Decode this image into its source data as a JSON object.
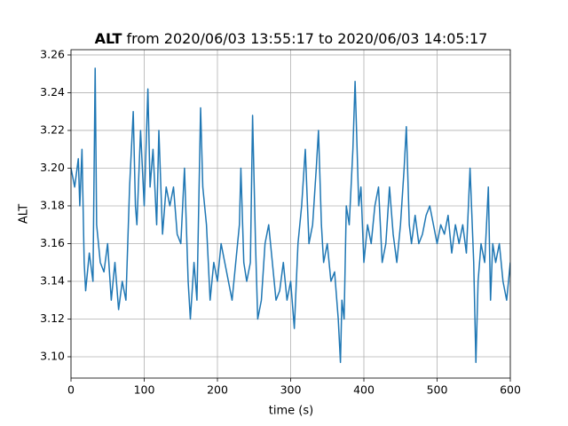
{
  "chart_data": {
    "type": "line",
    "title": [
      "ALT",
      "from 2020/06/03 13:55:17 to 2020/06/03 14:05:17"
    ],
    "x_label": "time (s)",
    "y_label": "ALT",
    "xlim": [
      0,
      600
    ],
    "xticks": [
      0,
      100,
      200,
      300,
      400,
      500,
      600
    ],
    "ylim": [
      3.0887,
      3.2628
    ],
    "yticks": [
      {
        "value": 3.1,
        "label": "3.10"
      },
      {
        "value": 3.12,
        "label": "3.12"
      },
      {
        "value": 3.14,
        "label": "3.14"
      },
      {
        "value": 3.16,
        "label": "3.16"
      },
      {
        "value": 3.18,
        "label": "3.18"
      },
      {
        "value": 3.2,
        "label": "3.20"
      },
      {
        "value": 3.22,
        "label": "3.22"
      },
      {
        "value": 3.24,
        "label": "3.24"
      },
      {
        "value": 3.26,
        "label": "3.26"
      }
    ],
    "grid": true,
    "x": [
      0,
      5,
      10,
      12,
      15,
      18,
      20,
      25,
      30,
      33,
      35,
      40,
      45,
      50,
      55,
      60,
      65,
      70,
      75,
      80,
      85,
      88,
      90,
      95,
      100,
      105,
      108,
      112,
      117,
      120,
      125,
      130,
      135,
      140,
      145,
      150,
      155,
      160,
      163,
      168,
      172,
      177,
      180,
      185,
      190,
      195,
      200,
      205,
      210,
      215,
      220,
      225,
      230,
      232,
      236,
      240,
      245,
      248,
      252,
      255,
      260,
      265,
      270,
      275,
      280,
      285,
      290,
      295,
      300,
      305,
      310,
      315,
      320,
      325,
      330,
      335,
      338,
      342,
      345,
      350,
      355,
      360,
      365,
      368,
      370,
      373,
      376,
      380,
      385,
      388,
      390,
      393,
      396,
      400,
      405,
      410,
      415,
      420,
      425,
      430,
      435,
      440,
      445,
      450,
      455,
      458,
      462,
      465,
      470,
      475,
      480,
      485,
      490,
      495,
      500,
      505,
      510,
      515,
      520,
      525,
      530,
      535,
      540,
      545,
      550,
      553,
      556,
      560,
      565,
      570,
      573,
      576,
      580,
      585,
      590,
      595,
      600
    ],
    "series": [
      {
        "name": "ALT",
        "color": "#1f77b4",
        "values": [
          3.2,
          3.19,
          3.205,
          3.18,
          3.21,
          3.15,
          3.135,
          3.155,
          3.14,
          3.253,
          3.17,
          3.15,
          3.145,
          3.16,
          3.13,
          3.15,
          3.125,
          3.14,
          3.13,
          3.19,
          3.23,
          3.18,
          3.17,
          3.22,
          3.18,
          3.242,
          3.19,
          3.21,
          3.17,
          3.22,
          3.165,
          3.19,
          3.18,
          3.19,
          3.165,
          3.16,
          3.2,
          3.14,
          3.12,
          3.15,
          3.13,
          3.232,
          3.19,
          3.17,
          3.13,
          3.15,
          3.14,
          3.16,
          3.15,
          3.14,
          3.13,
          3.15,
          3.17,
          3.2,
          3.15,
          3.14,
          3.15,
          3.228,
          3.16,
          3.12,
          3.13,
          3.16,
          3.17,
          3.15,
          3.13,
          3.135,
          3.15,
          3.13,
          3.14,
          3.115,
          3.16,
          3.18,
          3.21,
          3.16,
          3.17,
          3.2,
          3.22,
          3.17,
          3.15,
          3.16,
          3.14,
          3.145,
          3.12,
          3.097,
          3.13,
          3.12,
          3.18,
          3.17,
          3.21,
          3.246,
          3.22,
          3.18,
          3.19,
          3.15,
          3.17,
          3.16,
          3.18,
          3.19,
          3.15,
          3.16,
          3.19,
          3.165,
          3.15,
          3.17,
          3.2,
          3.222,
          3.17,
          3.16,
          3.175,
          3.16,
          3.165,
          3.175,
          3.18,
          3.17,
          3.16,
          3.17,
          3.165,
          3.175,
          3.155,
          3.17,
          3.16,
          3.17,
          3.155,
          3.2,
          3.15,
          3.097,
          3.14,
          3.16,
          3.15,
          3.19,
          3.13,
          3.16,
          3.15,
          3.16,
          3.14,
          3.13,
          3.15
        ]
      }
    ]
  }
}
